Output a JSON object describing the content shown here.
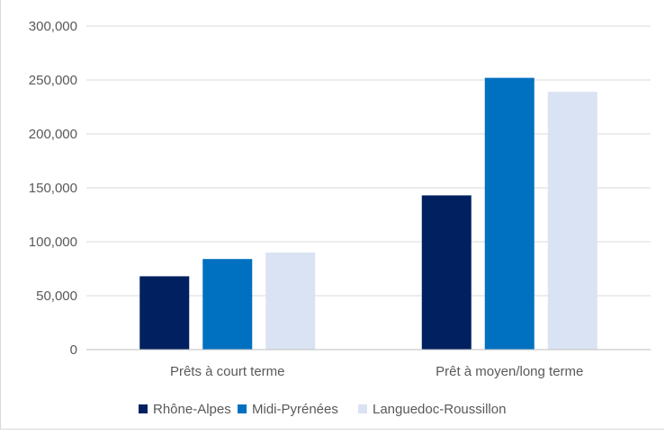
{
  "chart_data": {
    "type": "bar",
    "categories": [
      "Prêts à court terme",
      "Prêt à moyen/long terme"
    ],
    "series": [
      {
        "name": "Rhône-Alpes",
        "values": [
          68000,
          143000
        ],
        "color": "#002060"
      },
      {
        "name": "Midi-Pyrénées",
        "values": [
          84000,
          252000
        ],
        "color": "#0070C0"
      },
      {
        "name": "Languedoc-Roussillon",
        "values": [
          90000,
          239000
        ],
        "color": "#DAE3F3"
      }
    ],
    "yticks": [
      "0",
      "50,000",
      "100,000",
      "150,000",
      "200,000",
      "250,000",
      "300,000"
    ],
    "ylim": [
      0,
      300000
    ],
    "grid": true,
    "legend_position": "bottom"
  }
}
